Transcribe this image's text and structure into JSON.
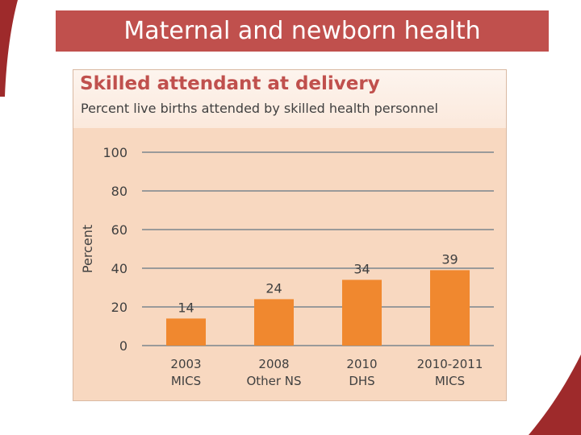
{
  "slide": {
    "title": "Maternal and newborn health"
  },
  "colors": {
    "accent": "#c0504d",
    "bar": "#f0882f",
    "panel": "#f8d8c0",
    "grid": "#9a9a9a"
  },
  "chart_data": {
    "type": "bar",
    "title": "Skilled attendant at delivery",
    "subtitle": "Percent live births attended by skilled health personnel",
    "ylabel": "Percent",
    "ylim": [
      0,
      100
    ],
    "yticks": [
      0,
      20,
      40,
      60,
      80,
      100
    ],
    "grid": true,
    "categories": [
      {
        "line1": "2003",
        "line2": "MICS"
      },
      {
        "line1": "2008",
        "line2": "Other NS"
      },
      {
        "line1": "2010",
        "line2": "DHS"
      },
      {
        "line1": "2010-2011",
        "line2": "MICS"
      }
    ],
    "values": [
      14,
      24,
      34,
      39
    ]
  }
}
